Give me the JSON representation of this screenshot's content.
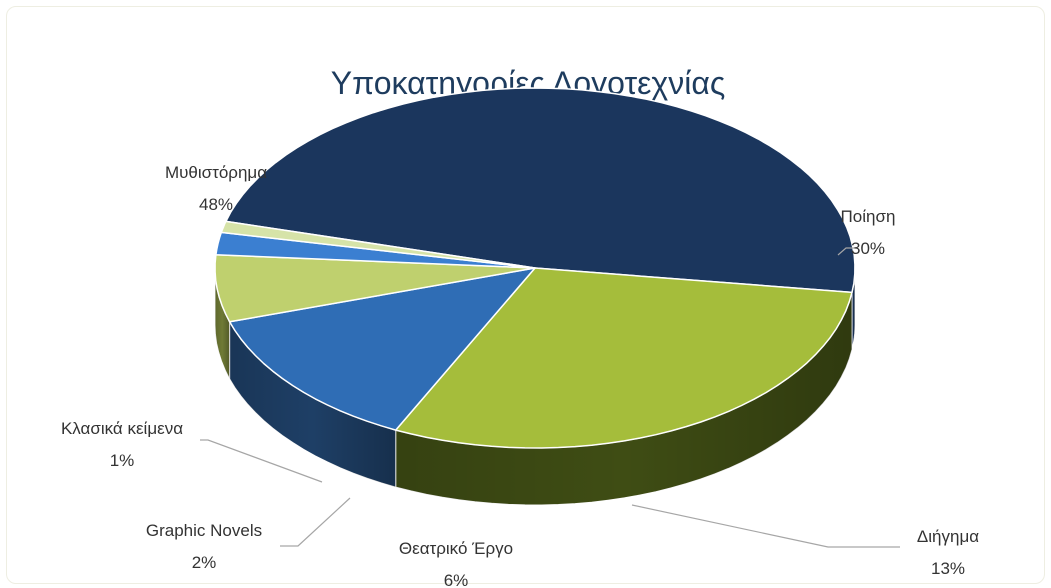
{
  "chart_data": {
    "type": "pie",
    "style": "3d",
    "title": "Υποκατηγορίες Λογοτεχνίας",
    "slices": [
      {
        "label": "Μυθιστόρημα",
        "value": 48,
        "value_text": "48%",
        "color": "#1b365d",
        "side_color": "#1a3256"
      },
      {
        "label": "Ποίηση",
        "value": 30,
        "value_text": "30%",
        "color": "#a5bd3b",
        "side_color": "#3f4d14"
      },
      {
        "label": "Διήγημα",
        "value": 13,
        "value_text": "13%",
        "color": "#2f6db5",
        "side_color": "#1e3f66"
      },
      {
        "label": "Θεατρικό Έργο",
        "value": 6,
        "value_text": "6%",
        "color": "#bfd06e",
        "side_color": "#6f7a35"
      },
      {
        "label": "Graphic Novels",
        "value": 2,
        "value_text": "2%",
        "color": "#3b7fd1",
        "side_color": "#2d5a92"
      },
      {
        "label": "Κλασικά κείμενα",
        "value": 1,
        "value_text": "1%",
        "color": "#d6e3a8",
        "side_color": "#a4b27a"
      }
    ],
    "legend": "none",
    "data_labels": "category and percentage"
  }
}
